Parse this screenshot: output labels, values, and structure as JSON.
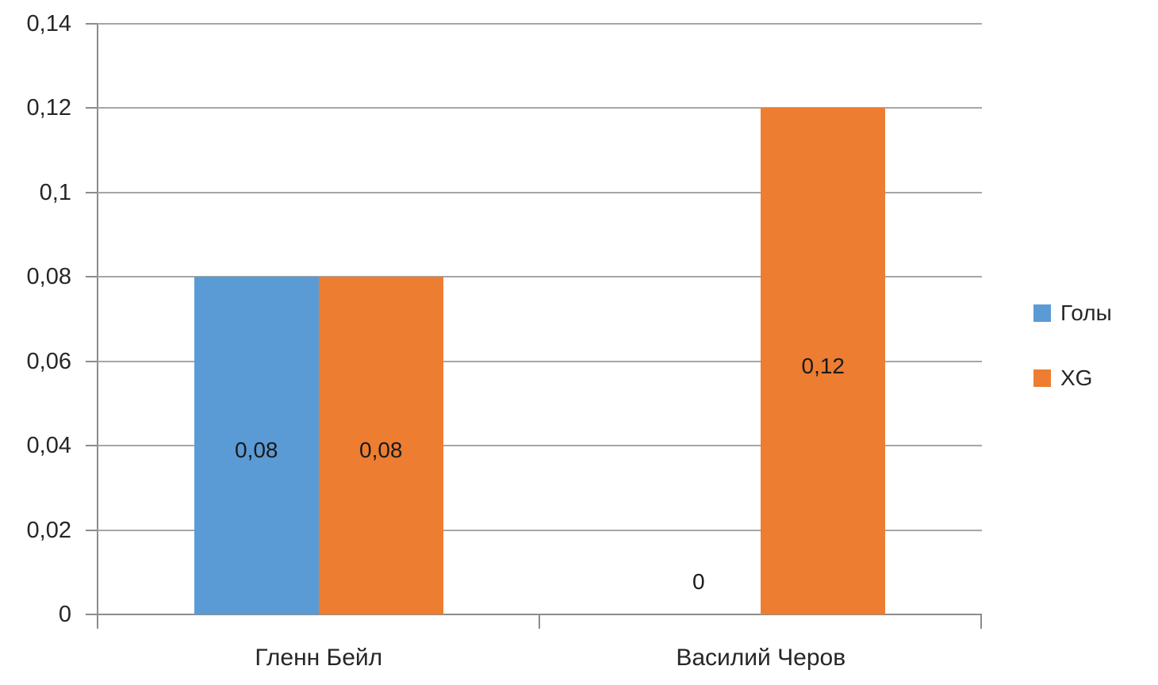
{
  "chart_data": {
    "type": "bar",
    "categories": [
      "Гленн Бейл",
      "Василий Черов"
    ],
    "series": [
      {
        "name": "Голы",
        "color": "#5B9BD5",
        "values": [
          0.08,
          0
        ],
        "data_labels": [
          "0,08",
          "0"
        ]
      },
      {
        "name": "XG",
        "color": "#ED7D31",
        "values": [
          0.08,
          0.12
        ],
        "data_labels": [
          "0,08",
          "0,12"
        ]
      }
    ],
    "ylim": [
      0,
      0.14
    ],
    "ytick_values": [
      0,
      0.02,
      0.04,
      0.06,
      0.08,
      0.1,
      0.12,
      0.14
    ],
    "ytick_labels": [
      "0",
      "0,02",
      "0,04",
      "0,06",
      "0,08",
      "0,1",
      "0,12",
      "0,14"
    ],
    "decimal_separator": ",",
    "grid": "horizontal",
    "legend_position": "right",
    "data_label_position": "center",
    "colors": {
      "gridline": "#A6A6A6",
      "axis": "#8C8C8C",
      "text": "#262626",
      "background": "#FFFFFF"
    }
  }
}
